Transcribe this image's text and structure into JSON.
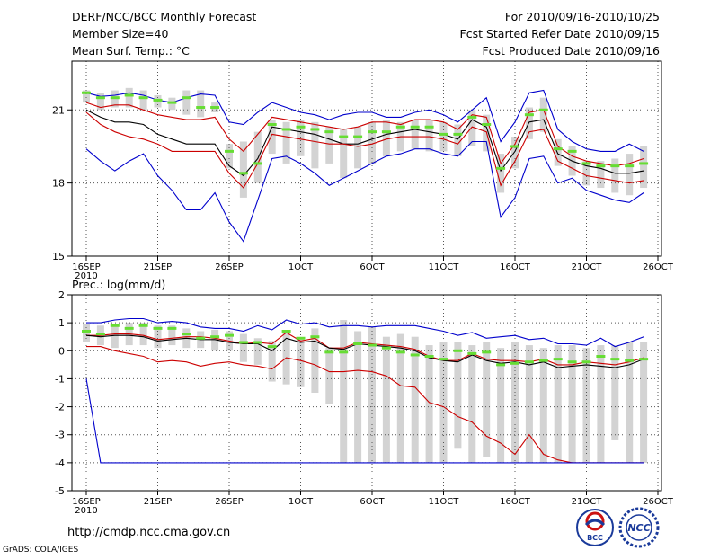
{
  "header": {
    "title": "DERF/NCC/BCC Monthly Forecast",
    "member_size": "Member Size=40",
    "variable": "Mean Surf. Temp.: °C",
    "forecast_period": "For 2010/09/16-2010/10/25",
    "fcst_started": "Fcst Started Refer Date 2010/09/15",
    "fcst_produced": "Fcst Produced Date 2010/09/16"
  },
  "footer": {
    "url": "http://cmdp.ncc.cma.gov.cn",
    "credit": "GrADS: COLA/IGES",
    "logo_bcc": "BCC",
    "logo_ncc": "NCC"
  },
  "colors": {
    "envelope": "#0000cc",
    "spread": "#cc0000",
    "mean": "#000000",
    "observed": "#66dd33",
    "boxes": "#d3d3d3",
    "grid": "#555555"
  },
  "chart_data": [
    {
      "type": "line",
      "name": "temperature",
      "title": "Mean Surf. Temp.: °C",
      "x_tick_labels": [
        "16SEP",
        "21SEP",
        "26SEP",
        "1OCT",
        "6OCT",
        "11OCT",
        "16OCT",
        "21OCT",
        "26OCT"
      ],
      "x_sublabel": "2010",
      "ylim": [
        15,
        23
      ],
      "y_ticks": [
        15,
        18,
        21
      ],
      "days": [
        0,
        1,
        2,
        3,
        4,
        5,
        6,
        7,
        8,
        9,
        10,
        11,
        12,
        13,
        14,
        15,
        16,
        17,
        18,
        19,
        20,
        21,
        22,
        23,
        24,
        25,
        26,
        27,
        28,
        29,
        30,
        31,
        32,
        33,
        34,
        35,
        36,
        37,
        38,
        39
      ],
      "series": [
        {
          "name": "max",
          "values": [
            21.7,
            21.55,
            21.6,
            21.7,
            21.6,
            21.4,
            21.3,
            21.5,
            21.65,
            21.6,
            20.5,
            20.4,
            20.9,
            21.3,
            21.1,
            20.9,
            20.8,
            20.6,
            20.8,
            20.9,
            20.9,
            20.7,
            20.7,
            20.9,
            21.0,
            20.8,
            20.5,
            21.0,
            21.5,
            19.7,
            20.5,
            21.7,
            21.8,
            20.2,
            19.7,
            19.4,
            19.3,
            19.3,
            19.6,
            19.3
          ]
        },
        {
          "name": "p90",
          "values": [
            21.3,
            21.1,
            21.2,
            21.2,
            21.0,
            20.8,
            20.7,
            20.6,
            20.6,
            20.7,
            19.8,
            19.3,
            20.0,
            20.7,
            20.6,
            20.5,
            20.4,
            20.3,
            20.2,
            20.3,
            20.5,
            20.5,
            20.4,
            20.6,
            20.6,
            20.5,
            20.2,
            20.8,
            20.7,
            18.8,
            19.6,
            20.9,
            21.0,
            19.5,
            19.1,
            18.9,
            18.8,
            18.7,
            18.8,
            19.0
          ]
        },
        {
          "name": "mean",
          "values": [
            21.0,
            20.7,
            20.5,
            20.5,
            20.4,
            20.0,
            19.8,
            19.6,
            19.6,
            19.6,
            18.7,
            18.3,
            19.0,
            20.3,
            20.2,
            20.1,
            20.0,
            19.8,
            19.6,
            19.6,
            19.8,
            20.0,
            20.1,
            20.2,
            20.1,
            20.0,
            19.8,
            20.6,
            20.3,
            18.5,
            19.3,
            20.5,
            20.6,
            19.2,
            18.9,
            18.7,
            18.6,
            18.4,
            18.4,
            18.5
          ]
        },
        {
          "name": "p10",
          "values": [
            20.9,
            20.4,
            20.1,
            19.9,
            19.8,
            19.6,
            19.3,
            19.3,
            19.3,
            19.3,
            18.4,
            17.8,
            18.8,
            20.0,
            19.9,
            19.8,
            19.7,
            19.6,
            19.6,
            19.5,
            19.6,
            19.8,
            19.9,
            19.9,
            19.9,
            19.8,
            19.6,
            20.3,
            20.1,
            17.9,
            18.9,
            20.1,
            20.2,
            18.9,
            18.6,
            18.3,
            18.2,
            18.1,
            18.0,
            18.1
          ]
        },
        {
          "name": "min",
          "values": [
            19.4,
            18.9,
            18.5,
            18.9,
            19.2,
            18.3,
            17.7,
            16.9,
            16.9,
            17.6,
            16.4,
            15.6,
            17.3,
            19.0,
            19.1,
            18.8,
            18.4,
            17.9,
            18.2,
            18.5,
            18.8,
            19.1,
            19.2,
            19.4,
            19.4,
            19.2,
            19.1,
            19.7,
            19.7,
            16.6,
            17.4,
            19.0,
            19.1,
            18.0,
            18.2,
            17.7,
            17.5,
            17.3,
            17.2,
            17.6
          ]
        },
        {
          "name": "observed",
          "values": [
            21.7,
            21.5,
            21.5,
            21.6,
            21.5,
            21.4,
            21.3,
            21.5,
            21.1,
            21.1,
            19.3,
            18.4,
            18.8,
            20.4,
            20.2,
            20.3,
            20.2,
            20.1,
            19.9,
            19.9,
            20.1,
            20.1,
            20.3,
            20.3,
            20.3,
            20.0,
            20.0,
            20.7,
            20.4,
            18.6,
            19.5,
            20.8,
            21.0,
            19.4,
            19.3,
            18.8,
            18.7,
            18.7,
            18.7,
            18.8
          ]
        }
      ],
      "boxes": [
        [
          21.3,
          21.8
        ],
        [
          21.0,
          21.7
        ],
        [
          21.1,
          21.8
        ],
        [
          21.1,
          21.9
        ],
        [
          21.0,
          21.8
        ],
        [
          21.1,
          21.6
        ],
        [
          21.0,
          21.5
        ],
        [
          20.8,
          21.8
        ],
        [
          20.7,
          21.8
        ],
        [
          20.9,
          21.3
        ],
        [
          18.6,
          19.6
        ],
        [
          17.4,
          19.7
        ],
        [
          18.0,
          20.1
        ],
        [
          19.2,
          20.6
        ],
        [
          18.8,
          20.5
        ],
        [
          19.1,
          20.6
        ],
        [
          18.6,
          20.5
        ],
        [
          18.8,
          20.3
        ],
        [
          18.2,
          20.2
        ],
        [
          18.6,
          20.3
        ],
        [
          18.8,
          20.5
        ],
        [
          19.1,
          20.6
        ],
        [
          19.3,
          20.5
        ],
        [
          19.4,
          20.6
        ],
        [
          19.3,
          20.6
        ],
        [
          19.3,
          20.5
        ],
        [
          19.1,
          20.4
        ],
        [
          19.5,
          21.0
        ],
        [
          19.3,
          20.8
        ],
        [
          17.6,
          19.2
        ],
        [
          18.6,
          19.9
        ],
        [
          19.8,
          21.1
        ],
        [
          20.1,
          21.5
        ],
        [
          18.7,
          19.8
        ],
        [
          18.3,
          19.5
        ],
        [
          17.9,
          18.9
        ],
        [
          17.8,
          18.9
        ],
        [
          17.6,
          19.0
        ],
        [
          17.5,
          19.2
        ],
        [
          17.8,
          19.5
        ]
      ]
    },
    {
      "type": "line",
      "name": "precipitation",
      "title": "Prec.: log(mm/d)",
      "x_tick_labels": [
        "16SEP",
        "21SEP",
        "26SEP",
        "1OCT",
        "6OCT",
        "11OCT",
        "16OCT",
        "21OCT",
        "26OCT"
      ],
      "x_sublabel": "2010",
      "ylim": [
        -5,
        2
      ],
      "y_ticks": [
        -5,
        -4,
        -3,
        -2,
        -1,
        0,
        1,
        2
      ],
      "days": [
        0,
        1,
        2,
        3,
        4,
        5,
        6,
        7,
        8,
        9,
        10,
        11,
        12,
        13,
        14,
        15,
        16,
        17,
        18,
        19,
        20,
        21,
        22,
        23,
        24,
        25,
        26,
        27,
        28,
        29,
        30,
        31,
        32,
        33,
        34,
        35,
        36,
        37,
        38,
        39
      ],
      "series": [
        {
          "name": "max",
          "values": [
            1.0,
            1.0,
            1.1,
            1.15,
            1.15,
            1.0,
            1.05,
            1.0,
            0.85,
            0.8,
            0.8,
            0.7,
            0.9,
            0.75,
            1.1,
            0.95,
            1.0,
            0.85,
            0.9,
            0.9,
            0.85,
            0.9,
            0.9,
            0.9,
            0.8,
            0.7,
            0.55,
            0.65,
            0.45,
            0.5,
            0.55,
            0.4,
            0.45,
            0.25,
            0.25,
            0.2,
            0.45,
            0.15,
            0.3,
            0.5
          ]
        },
        {
          "name": "p90",
          "values": [
            0.55,
            0.55,
            0.6,
            0.6,
            0.55,
            0.4,
            0.45,
            0.5,
            0.5,
            0.45,
            0.35,
            0.25,
            0.3,
            0.25,
            0.65,
            0.35,
            0.45,
            0.1,
            0.1,
            0.3,
            0.25,
            0.2,
            0.15,
            0.05,
            -0.2,
            -0.35,
            -0.35,
            -0.1,
            -0.3,
            -0.35,
            -0.35,
            -0.4,
            -0.3,
            -0.5,
            -0.5,
            -0.4,
            -0.45,
            -0.5,
            -0.4,
            -0.25
          ]
        },
        {
          "name": "mean",
          "values": [
            0.55,
            0.5,
            0.55,
            0.55,
            0.5,
            0.35,
            0.4,
            0.45,
            0.4,
            0.4,
            0.3,
            0.25,
            0.25,
            0.0,
            0.45,
            0.3,
            0.35,
            0.1,
            0.05,
            0.25,
            0.2,
            0.15,
            0.1,
            0.0,
            -0.25,
            -0.35,
            -0.4,
            -0.15,
            -0.35,
            -0.45,
            -0.4,
            -0.5,
            -0.4,
            -0.6,
            -0.55,
            -0.5,
            -0.55,
            -0.6,
            -0.5,
            -0.3
          ]
        },
        {
          "name": "p10",
          "values": [
            0.15,
            0.15,
            0.0,
            -0.1,
            -0.2,
            -0.4,
            -0.35,
            -0.4,
            -0.55,
            -0.45,
            -0.4,
            -0.5,
            -0.55,
            -0.65,
            -0.25,
            -0.35,
            -0.5,
            -0.75,
            -0.75,
            -0.7,
            -0.75,
            -0.9,
            -1.25,
            -1.3,
            -1.85,
            -2.0,
            -2.35,
            -2.55,
            -3.05,
            -3.3,
            -3.7,
            -3.0,
            -3.7,
            -3.9,
            -4.0,
            -4.0,
            -4.0,
            -4.0,
            -4.0,
            -4.0
          ]
        },
        {
          "name": "min",
          "values": [
            -1.0,
            -4.0,
            -4.0,
            -4.0,
            -4.0,
            -4.0,
            -4.0,
            -4.0,
            -4.0,
            -4.0,
            -4.0,
            -4.0,
            -4.0,
            -4.0,
            -4.0,
            -4.0,
            -4.0,
            -4.0,
            -4.0,
            -4.0,
            -4.0,
            -4.0,
            -4.0,
            -4.0,
            -4.0,
            -4.0,
            -4.0,
            -4.0,
            -4.0,
            -4.0,
            -4.0,
            -4.0,
            -4.0,
            -4.0,
            -4.0,
            -4.0,
            -4.0,
            -4.0,
            -4.0,
            -4.0
          ]
        },
        {
          "name": "observed",
          "values": [
            0.7,
            0.6,
            0.9,
            0.8,
            0.9,
            0.8,
            0.8,
            0.6,
            0.45,
            0.5,
            0.55,
            0.3,
            0.3,
            0.15,
            0.7,
            0.45,
            0.5,
            -0.05,
            -0.05,
            0.25,
            0.2,
            0.1,
            -0.05,
            -0.15,
            -0.2,
            -0.3,
            0.0,
            -0.1,
            -0.05,
            -0.5,
            -0.45,
            -0.4,
            -0.35,
            -0.3,
            -0.4,
            -0.4,
            -0.2,
            -0.3,
            -0.35,
            -0.3
          ]
        }
      ],
      "boxes": [
        [
          0.3,
          0.95
        ],
        [
          0.2,
          0.9
        ],
        [
          0.1,
          0.95
        ],
        [
          0.2,
          1.0
        ],
        [
          0.2,
          1.0
        ],
        [
          0.1,
          0.9
        ],
        [
          0.2,
          0.9
        ],
        [
          0.1,
          0.8
        ],
        [
          0.1,
          0.7
        ],
        [
          0.0,
          0.75
        ],
        [
          0.0,
          0.7
        ],
        [
          -0.4,
          0.6
        ],
        [
          -0.5,
          0.45
        ],
        [
          -1.1,
          0.35
        ],
        [
          -1.2,
          0.65
        ],
        [
          -1.3,
          0.45
        ],
        [
          -1.5,
          0.8
        ],
        [
          -1.9,
          0.1
        ],
        [
          -4.0,
          1.1
        ],
        [
          -4.0,
          0.7
        ],
        [
          -4.0,
          0.85
        ],
        [
          -4.0,
          0.5
        ],
        [
          -4.0,
          0.6
        ],
        [
          -4.0,
          0.5
        ],
        [
          -4.0,
          0.2
        ],
        [
          -4.0,
          0.3
        ],
        [
          -3.5,
          0.3
        ],
        [
          -4.0,
          0.2
        ],
        [
          -3.8,
          0.3
        ],
        [
          -4.0,
          0.1
        ],
        [
          -4.0,
          0.3
        ],
        [
          -4.0,
          0.2
        ],
        [
          -4.0,
          0.1
        ],
        [
          -4.0,
          0.2
        ],
        [
          -4.0,
          0.2
        ],
        [
          -4.0,
          0.1
        ],
        [
          -4.0,
          0.2
        ],
        [
          -3.2,
          0.2
        ],
        [
          -4.0,
          0.3
        ],
        [
          -4.0,
          0.3
        ]
      ]
    }
  ]
}
